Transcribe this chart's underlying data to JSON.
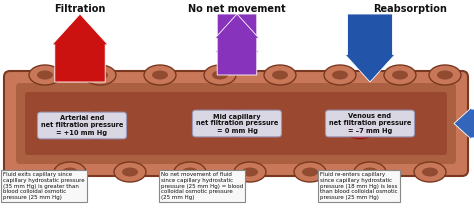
{
  "title_left": "Filtration",
  "title_mid": "No net movement",
  "title_right": "Reabsorption",
  "label_left": "Arterial end\nnet filtration pressure\n= +10 mm Hg",
  "label_mid": "Mid capillary\nnet filtration pressure\n= 0 mm Hg",
  "label_right": "Venous end\nnet filtration pressure\n= –7 mm Hg",
  "desc_left": "Fluid exits capillary since\ncapillary hydrostatic pressure\n(35 mm Hg) is greater than\nblood colloidal osmotic\npressure (25 mm Hg)",
  "desc_mid": "No net movement of fluid\nsince capillary hydrostatic\npressure (25 mm Hg) = blood\ncolloidal osmotic pressure\n(25 mm Hg)",
  "desc_right": "Fluid re-enters capillary\nsince capillary hydrostatic\npressure (18 mm Hg) is less\nthan blood colloidal osmotic\npressure (25 mm Hg)",
  "arrow_left_color": "#cc1111",
  "arrow_mid_color": "#8833bb",
  "arrow_right_color": "#2255aa",
  "arrow_right_horiz_color": "#3366bb",
  "cap_outer": "#c87858",
  "cap_inner": "#a05838",
  "cap_dark": "#7a3820",
  "bg_color": "#ffffff",
  "label_box_color": "#dde0ee",
  "desc_box_color": "#f8f8f8",
  "text_color": "#111111",
  "rbc_color": "#cc2020",
  "rbc_dark": "#991010"
}
